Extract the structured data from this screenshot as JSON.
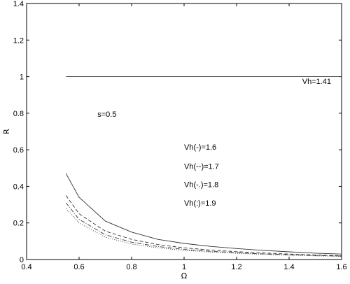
{
  "chart_data": {
    "type": "line",
    "title": "",
    "xlabel": "Ω",
    "ylabel": "R",
    "xlim": [
      0.4,
      1.6
    ],
    "ylim": [
      0,
      1.4
    ],
    "xticks": [
      0.4,
      0.6,
      0.8,
      1,
      1.2,
      1.4,
      1.6
    ],
    "xtick_labels": [
      "0.4",
      "0.6",
      "0.8",
      "1",
      "1.2",
      "1.4",
      "1.6"
    ],
    "yticks": [
      0,
      0.2,
      0.4,
      0.6,
      0.8,
      1,
      1.2,
      1.4
    ],
    "ytick_labels": [
      "0",
      "0.2",
      "0.4",
      "0.6",
      "0.8",
      "1",
      "1.2",
      "1.4"
    ],
    "grid": false,
    "series": [
      {
        "style": "solid",
        "points": [
          [
            0.55,
            1.0
          ],
          [
            1.6,
            1.0
          ]
        ]
      },
      {
        "style": "solid",
        "points": [
          [
            0.55,
            0.47
          ],
          [
            0.6,
            0.34
          ],
          [
            0.7,
            0.21
          ],
          [
            0.8,
            0.15
          ],
          [
            0.9,
            0.11
          ],
          [
            1.0,
            0.088
          ],
          [
            1.1,
            0.072
          ],
          [
            1.2,
            0.06
          ],
          [
            1.3,
            0.05
          ],
          [
            1.4,
            0.042
          ],
          [
            1.5,
            0.035
          ],
          [
            1.6,
            0.03
          ]
        ]
      },
      {
        "style": "dashed",
        "points": [
          [
            0.55,
            0.35
          ],
          [
            0.6,
            0.25
          ],
          [
            0.7,
            0.155
          ],
          [
            0.8,
            0.11
          ],
          [
            0.9,
            0.082
          ],
          [
            1.0,
            0.064
          ],
          [
            1.1,
            0.052
          ],
          [
            1.2,
            0.043
          ],
          [
            1.3,
            0.036
          ],
          [
            1.4,
            0.03
          ],
          [
            1.5,
            0.025
          ],
          [
            1.6,
            0.021
          ]
        ]
      },
      {
        "style": "dashdot",
        "points": [
          [
            0.55,
            0.31
          ],
          [
            0.6,
            0.22
          ],
          [
            0.7,
            0.135
          ],
          [
            0.8,
            0.095
          ],
          [
            0.9,
            0.071
          ],
          [
            1.0,
            0.055
          ],
          [
            1.1,
            0.045
          ],
          [
            1.2,
            0.037
          ],
          [
            1.3,
            0.031
          ],
          [
            1.4,
            0.026
          ],
          [
            1.5,
            0.022
          ],
          [
            1.6,
            0.019
          ]
        ]
      },
      {
        "style": "dotted",
        "points": [
          [
            0.55,
            0.28
          ],
          [
            0.6,
            0.2
          ],
          [
            0.7,
            0.122
          ],
          [
            0.8,
            0.085
          ],
          [
            0.9,
            0.064
          ],
          [
            1.0,
            0.05
          ],
          [
            1.1,
            0.041
          ],
          [
            1.2,
            0.034
          ],
          [
            1.3,
            0.028
          ],
          [
            1.4,
            0.024
          ],
          [
            1.5,
            0.02
          ],
          [
            1.6,
            0.017
          ]
        ]
      }
    ],
    "annotations": [
      {
        "text": "Vh=1.41",
        "x": 1.45,
        "y": 0.96
      },
      {
        "text": "s=0.5",
        "x": 0.67,
        "y": 0.78
      },
      {
        "text": "Vh(-)=1.6",
        "x": 1.0,
        "y": 0.6
      },
      {
        "text": "Vh(--)=1.7",
        "x": 1.0,
        "y": 0.495
      },
      {
        "text": "Vh(-.)=1.8",
        "x": 1.0,
        "y": 0.395
      },
      {
        "text": "Vh(:)=1.9",
        "x": 1.0,
        "y": 0.295
      }
    ]
  }
}
